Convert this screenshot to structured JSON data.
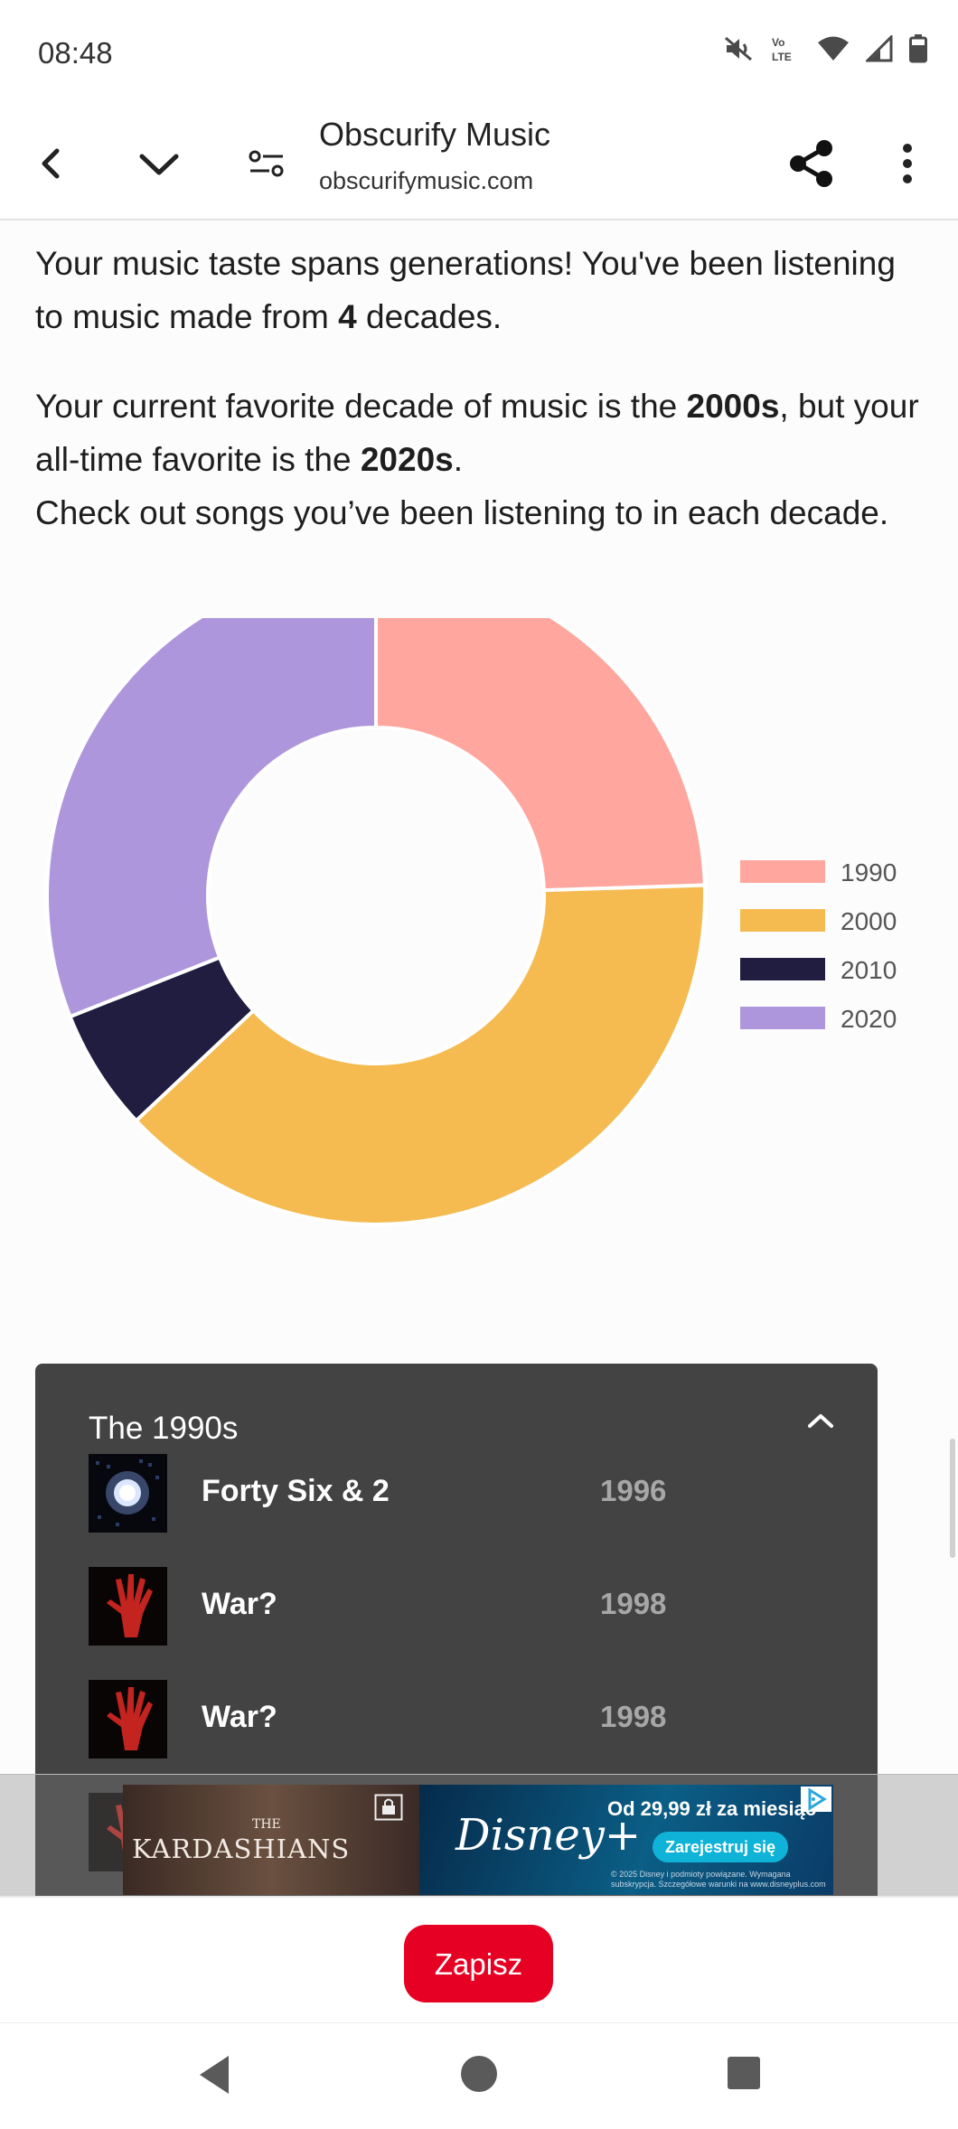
{
  "status_bar": {
    "time": "08:48",
    "icons": [
      "mute-icon",
      "volte-icon",
      "wifi-icon",
      "signal-icon",
      "battery-icon"
    ],
    "volte_text": "Vo LTE"
  },
  "browser": {
    "title": "Obscurify Music",
    "url": "obscurifymusic.com",
    "icons": [
      "back-arrow-icon",
      "chevron-down-icon",
      "page-settings-icon",
      "share-icon",
      "more-vert-icon"
    ]
  },
  "content": {
    "p1_text": "Your music taste spans generations! You've been listening to music made from ",
    "p1_count": "4",
    "p1_end": " decades.",
    "p2_text": "Your current favorite decade of music is the ",
    "p2_current": "2000s",
    "p2_mid": ", but your all-time favorite is the ",
    "p2_alltime": "2020s",
    "p2_end": ".",
    "p3_text": "Check out songs you’ve been listening to in each decade."
  },
  "chart_data": {
    "type": "pie",
    "donut": true,
    "categories": [
      "1990",
      "2000",
      "2010",
      "2020"
    ],
    "values": [
      24.5,
      38.5,
      6,
      31
    ],
    "colors": [
      "#ffa69e",
      "#f5bb51",
      "#201d40",
      "#ae96dc"
    ],
    "legend_position": "right"
  },
  "decade_panel": {
    "title": "The 1990s",
    "songs": [
      {
        "title": "Forty Six & 2",
        "year": "1996",
        "cover": "light-burst"
      },
      {
        "title": "War?",
        "year": "1998",
        "cover": "red-hand"
      },
      {
        "title": "War?",
        "year": "1998",
        "cover": "red-hand"
      }
    ]
  },
  "ad": {
    "left_small": "THE",
    "left_title": "KARDASHIANS",
    "brand": "Disney+",
    "price": "Od 29,99 zł za miesiąc",
    "cta": "Zarejestruj się",
    "fine_print": "© 2025 Disney i podmioty powiązane. Wymagana subskrypcja. Szczegółowe warunki na www.disneyplus.com"
  },
  "save_button": {
    "label": "Zapisz",
    "color": "#e60023"
  },
  "navigation": {
    "icons": [
      "nav-back-icon",
      "nav-home-icon",
      "nav-recents-icon"
    ]
  }
}
